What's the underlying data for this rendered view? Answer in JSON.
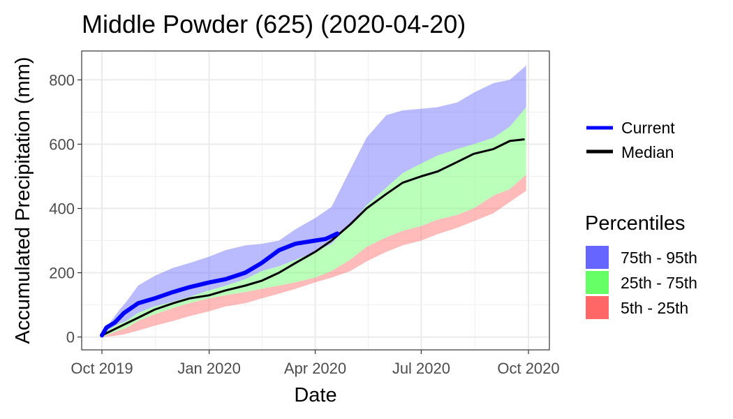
{
  "chart_data": {
    "type": "area",
    "title": "Middle Powder (625) (2020-04-20)",
    "xlabel": "Date",
    "ylabel": "Accumulated Precipitation (mm)",
    "x_axis": {
      "type": "date",
      "range": [
        "2019-10-01",
        "2020-10-01"
      ],
      "ticks": [
        {
          "date": "2019-10-01",
          "label": "Oct 2019"
        },
        {
          "date": "2020-01-01",
          "label": "Jan 2020"
        },
        {
          "date": "2020-04-01",
          "label": "Apr 2020"
        },
        {
          "date": "2020-07-01",
          "label": "Jul 2020"
        },
        {
          "date": "2020-10-01",
          "label": "Oct 2020"
        }
      ]
    },
    "y_axis": {
      "range": [
        -40,
        890
      ],
      "ticks": [
        0,
        200,
        400,
        600,
        800
      ]
    },
    "grid": true,
    "legend_position": "right",
    "lines_legend": [
      {
        "name": "Current",
        "color": "#0000ff"
      },
      {
        "name": "Median",
        "color": "#000000"
      }
    ],
    "percentiles_legend": {
      "title": "Percentiles",
      "items": [
        {
          "name": "75th - 95th",
          "color": "#6666ff"
        },
        {
          "name": "25th - 75th",
          "color": "#66ff66"
        },
        {
          "name": "5th - 25th",
          "color": "#ff6666"
        }
      ]
    },
    "dates": [
      "2019-10-01",
      "2019-10-08",
      "2019-10-15",
      "2019-10-22",
      "2019-11-01",
      "2019-11-15",
      "2019-12-01",
      "2019-12-15",
      "2020-01-01",
      "2020-01-15",
      "2020-02-01",
      "2020-02-15",
      "2020-03-01",
      "2020-03-15",
      "2020-04-01",
      "2020-04-15",
      "2020-05-01",
      "2020-05-15",
      "2020-06-01",
      "2020-06-15",
      "2020-07-01",
      "2020-07-15",
      "2020-08-01",
      "2020-08-15",
      "2020-09-01",
      "2020-09-15",
      "2020-09-29"
    ],
    "bands": [
      {
        "name": "75th - 95th",
        "color": "#6666ff",
        "lower": [
          5,
          25,
          40,
          50,
          75,
          95,
          110,
          125,
          145,
          160,
          180,
          205,
          220,
          240,
          265,
          290,
          350,
          410,
          465,
          510,
          540,
          565,
          585,
          600,
          620,
          655,
          715
        ],
        "upper": [
          15,
          45,
          80,
          110,
          160,
          190,
          215,
          230,
          250,
          270,
          285,
          290,
          300,
          335,
          370,
          405,
          520,
          620,
          690,
          705,
          710,
          715,
          730,
          760,
          790,
          800,
          845
        ]
      },
      {
        "name": "25th - 75th",
        "color": "#66ff66",
        "lower": [
          0,
          10,
          20,
          28,
          50,
          70,
          90,
          105,
          120,
          130,
          140,
          150,
          160,
          170,
          185,
          205,
          240,
          280,
          310,
          330,
          345,
          365,
          380,
          400,
          440,
          460,
          505
        ],
        "upper": [
          5,
          25,
          40,
          50,
          75,
          95,
          110,
          125,
          145,
          160,
          180,
          205,
          220,
          240,
          265,
          290,
          350,
          410,
          465,
          510,
          540,
          565,
          585,
          600,
          620,
          655,
          715
        ]
      },
      {
        "name": "5th - 25th",
        "color": "#ff6666",
        "lower": [
          0,
          2,
          5,
          10,
          20,
          35,
          50,
          65,
          80,
          95,
          105,
          120,
          135,
          150,
          170,
          185,
          205,
          235,
          265,
          285,
          300,
          320,
          340,
          360,
          385,
          420,
          455
        ],
        "upper": [
          0,
          10,
          20,
          28,
          50,
          70,
          90,
          105,
          120,
          130,
          140,
          150,
          160,
          170,
          185,
          205,
          240,
          280,
          310,
          330,
          345,
          365,
          380,
          400,
          440,
          460,
          505
        ]
      }
    ],
    "series": [
      {
        "name": "Current",
        "color": "#0000ff",
        "x": [
          "2019-10-01",
          "2019-10-05",
          "2019-10-12",
          "2019-10-20",
          "2019-11-01",
          "2019-11-15",
          "2019-12-01",
          "2019-12-15",
          "2020-01-01",
          "2020-01-15",
          "2020-02-01",
          "2020-02-15",
          "2020-03-01",
          "2020-03-15",
          "2020-04-01",
          "2020-04-10",
          "2020-04-20"
        ],
        "y": [
          5,
          30,
          45,
          75,
          105,
          120,
          140,
          155,
          170,
          180,
          200,
          230,
          270,
          290,
          300,
          305,
          322
        ]
      },
      {
        "name": "Median",
        "color": "#000000",
        "x": [
          "2019-10-01",
          "2019-10-15",
          "2019-11-01",
          "2019-11-15",
          "2019-12-01",
          "2019-12-15",
          "2020-01-01",
          "2020-01-15",
          "2020-02-01",
          "2020-02-15",
          "2020-03-01",
          "2020-03-15",
          "2020-04-01",
          "2020-04-15",
          "2020-05-01",
          "2020-05-15",
          "2020-06-01",
          "2020-06-15",
          "2020-07-01",
          "2020-07-15",
          "2020-08-01",
          "2020-08-15",
          "2020-09-01",
          "2020-09-15",
          "2020-09-27"
        ],
        "y": [
          5,
          30,
          60,
          85,
          105,
          120,
          130,
          145,
          160,
          175,
          200,
          230,
          265,
          300,
          350,
          400,
          445,
          480,
          500,
          515,
          545,
          570,
          585,
          610,
          615
        ]
      }
    ]
  }
}
